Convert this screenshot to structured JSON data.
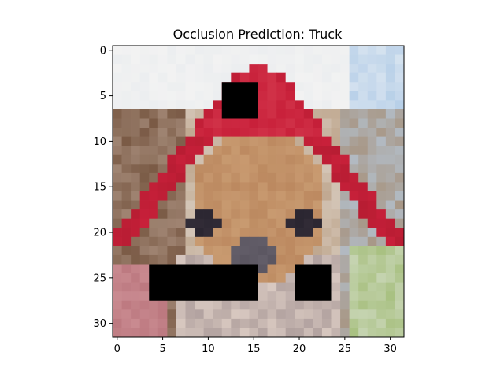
{
  "chart_data": {
    "type": "heatmap",
    "title": "Occlusion Prediction: Truck",
    "image_size": [
      32,
      32
    ],
    "xlim": [
      -0.5,
      31.5
    ],
    "ylim": [
      31.5,
      -0.5
    ],
    "x_ticks": [
      0,
      5,
      10,
      15,
      20,
      25,
      30
    ],
    "y_ticks": [
      0,
      5,
      10,
      15,
      20,
      25,
      30
    ],
    "grid": false,
    "occlusion_patches": [
      {
        "x0": 12,
        "x1": 15,
        "y0": 4,
        "y1": 7
      },
      {
        "x0": 4,
        "x1": 15,
        "y0": 24,
        "y1": 27
      },
      {
        "x0": 20,
        "x1": 23,
        "y0": 24,
        "y1": 27
      }
    ],
    "palette": {
      "background_sky": "#e9ecef",
      "hat_red": "#c8203a",
      "fur_tan": "#c89a70",
      "fur_dark": "#7a5a45",
      "eye": "#2a2530",
      "nose": "#5a5560",
      "pink_left": "#c98a90",
      "green_right": "#a8c080",
      "blue_right": "#b8d0e8",
      "occlusion": "#000000"
    }
  }
}
